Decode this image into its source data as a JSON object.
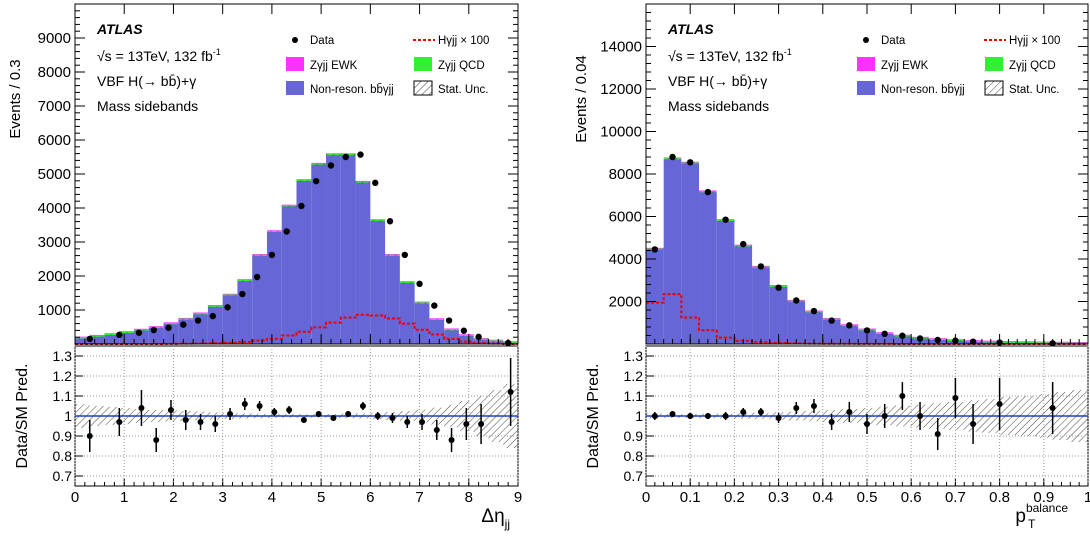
{
  "colors": {
    "nonreson": "#6666d6",
    "zqcd": "#33ee33",
    "zewk": "#ff33ff",
    "higgs": "#ee0000",
    "ratioLine": "#1f3fbf",
    "hatch": "#444444"
  },
  "chart_data": [
    {
      "type": "bar",
      "panel": "left",
      "labels": {
        "atlas": "ATLAS",
        "energy": "√s = 13TeV, 132 fb",
        "energy_sup": "-1",
        "process": "VBF H(→ bb̄)+γ",
        "region": "Mass sidebands"
      },
      "legend": [
        {
          "key": "data",
          "label": "Data"
        },
        {
          "key": "higgs",
          "label": "Hγjj × 100"
        },
        {
          "key": "zewk",
          "label": "Zγjj EWK"
        },
        {
          "key": "zqcd",
          "label": "Zγjj QCD"
        },
        {
          "key": "nonreson",
          "label": "Non-reson. bb̄γjj"
        },
        {
          "key": "stat",
          "label": "Stat. Unc."
        }
      ],
      "legend_placement": "top-right",
      "ylabel": "Events / 0.3",
      "ratio_ylabel": "Data/SM Pred.",
      "xlabel_main": "Δη",
      "xlabel_sub": "jj",
      "xlim": [
        0,
        9
      ],
      "ylim": [
        0,
        10000
      ],
      "yticks": [
        1000,
        2000,
        3000,
        4000,
        5000,
        6000,
        7000,
        8000,
        9000
      ],
      "xticks": [
        0,
        1,
        2,
        3,
        4,
        5,
        6,
        7,
        8,
        9
      ],
      "ratio_ylim": [
        0.65,
        1.35
      ],
      "ratio_yticks": [
        0.7,
        0.8,
        0.9,
        1,
        1.1,
        1.2,
        1.3
      ],
      "ratio_ytick_labels": [
        "0.7",
        "0.8",
        "0.9",
        "1",
        "1.1",
        "1.2",
        "1.3"
      ],
      "bin_edges": [
        0,
        0.3,
        0.6,
        0.9,
        1.2,
        1.5,
        1.8,
        2.1,
        2.4,
        2.7,
        3.0,
        3.3,
        3.6,
        3.9,
        4.2,
        4.5,
        4.8,
        5.1,
        5.4,
        5.7,
        6.0,
        6.3,
        6.6,
        6.9,
        7.2,
        7.5,
        7.8,
        8.1,
        8.4,
        8.7,
        9.0
      ],
      "stack_total": [
        170,
        220,
        270,
        330,
        400,
        480,
        590,
        720,
        880,
        1100,
        1430,
        1860,
        2600,
        3300,
        4050,
        4800,
        5280,
        5560,
        5560,
        4750,
        3620,
        2600,
        1800,
        1200,
        710,
        410,
        240,
        130,
        80,
        30
      ],
      "data_x": [
        0.3,
        0.9,
        1.3,
        1.6,
        1.9,
        2.2,
        2.5,
        2.8,
        3.1,
        3.4,
        3.7,
        4.0,
        4.3,
        4.6,
        4.9,
        5.2,
        5.5,
        5.8,
        6.1,
        6.4,
        6.7,
        7.0,
        7.3,
        7.6,
        7.9,
        8.2,
        8.8
      ],
      "data_y": [
        150,
        270,
        330,
        410,
        480,
        570,
        690,
        820,
        1080,
        1470,
        1970,
        2620,
        3310,
        4060,
        4790,
        5250,
        5500,
        5570,
        4740,
        3610,
        2620,
        1770,
        1130,
        690,
        390,
        210,
        30
      ],
      "higgs_x100": [
        0,
        0,
        0,
        0,
        0,
        0,
        5,
        10,
        15,
        25,
        40,
        60,
        100,
        150,
        250,
        360,
        490,
        630,
        780,
        860,
        840,
        750,
        600,
        420,
        280,
        150,
        70,
        30,
        10,
        0
      ],
      "ratio_x": [
        0.3,
        0.9,
        1.35,
        1.65,
        1.95,
        2.25,
        2.55,
        2.85,
        3.15,
        3.45,
        3.75,
        4.05,
        4.35,
        4.65,
        4.95,
        5.25,
        5.55,
        5.85,
        6.15,
        6.45,
        6.75,
        7.05,
        7.35,
        7.65,
        7.95,
        8.25,
        8.85
      ],
      "ratio_y": [
        0.9,
        0.97,
        1.04,
        0.88,
        1.03,
        0.98,
        0.97,
        0.96,
        1.01,
        1.06,
        1.05,
        1.02,
        1.03,
        0.98,
        1.01,
        0.99,
        1.01,
        1.05,
        1.0,
        0.99,
        0.97,
        0.97,
        0.93,
        0.88,
        0.96,
        0.96,
        1.12
      ],
      "ratio_err": [
        0.08,
        0.07,
        0.09,
        0.06,
        0.05,
        0.05,
        0.04,
        0.04,
        0.03,
        0.03,
        0.025,
        0.02,
        0.02,
        0.015,
        0.015,
        0.015,
        0.015,
        0.02,
        0.02,
        0.025,
        0.03,
        0.04,
        0.05,
        0.06,
        0.08,
        0.1,
        0.17
      ],
      "unc_band": [
        0.06,
        0.05,
        0.045,
        0.04,
        0.035,
        0.03,
        0.028,
        0.025,
        0.022,
        0.018,
        0.015,
        0.013,
        0.011,
        0.01,
        0.009,
        0.009,
        0.009,
        0.01,
        0.011,
        0.013,
        0.016,
        0.02,
        0.025,
        0.032,
        0.042,
        0.056,
        0.075,
        0.1,
        0.13,
        0.16
      ]
    },
    {
      "type": "bar",
      "panel": "right",
      "labels": {
        "atlas": "ATLAS",
        "energy": "√s = 13TeV, 132 fb",
        "energy_sup": "-1",
        "process": "VBF H(→ bb̄)+γ",
        "region": "Mass sidebands"
      },
      "legend": [
        {
          "key": "data",
          "label": "Data"
        },
        {
          "key": "higgs",
          "label": "Hγjj × 100"
        },
        {
          "key": "zewk",
          "label": "Zγjj EWK"
        },
        {
          "key": "zqcd",
          "label": "Zγjj QCD"
        },
        {
          "key": "nonreson",
          "label": "Non-reson. bb̄γjj"
        },
        {
          "key": "stat",
          "label": "Stat. Unc."
        }
      ],
      "legend_placement": "top-right",
      "ylabel": "Events / 0.04",
      "ratio_ylabel": "Data/SM Pred.",
      "xlabel_main": "p",
      "xlabel_sub": "T",
      "xlabel_sup": "balance",
      "xlim": [
        0,
        1
      ],
      "ylim": [
        0,
        16000
      ],
      "yticks": [
        2000,
        4000,
        6000,
        8000,
        10000,
        12000,
        14000
      ],
      "xticks": [
        0,
        0.1,
        0.2,
        0.3,
        0.4,
        0.5,
        0.6,
        0.7,
        0.8,
        0.9,
        1
      ],
      "xtick_labels": [
        "0",
        "0.1",
        "0.2",
        "0.3",
        "0.4",
        "0.5",
        "0.6",
        "0.7",
        "0.8",
        "0.9",
        "1"
      ],
      "ratio_ylim": [
        0.65,
        1.35
      ],
      "ratio_yticks": [
        0.7,
        0.8,
        0.9,
        1,
        1.1,
        1.2,
        1.3
      ],
      "ratio_ytick_labels": [
        "0.7",
        "0.8",
        "0.9",
        "1",
        "1.1",
        "1.2",
        "1.3"
      ],
      "bin_edges": [
        0,
        0.04,
        0.08,
        0.12,
        0.16,
        0.2,
        0.24,
        0.28,
        0.32,
        0.36,
        0.4,
        0.44,
        0.48,
        0.52,
        0.56,
        0.6,
        0.64,
        0.68,
        0.72,
        0.76,
        0.8,
        0.84,
        0.88,
        0.92,
        0.96,
        1.0
      ],
      "stack_total": [
        4450,
        8700,
        8500,
        7150,
        5800,
        4600,
        3600,
        2700,
        2000,
        1500,
        1150,
        850,
        650,
        480,
        360,
        260,
        200,
        150,
        110,
        85,
        65,
        50,
        40,
        30,
        20
      ],
      "data_x": [
        0.02,
        0.06,
        0.1,
        0.14,
        0.18,
        0.22,
        0.26,
        0.3,
        0.34,
        0.38,
        0.42,
        0.46,
        0.5,
        0.54,
        0.58,
        0.62,
        0.66,
        0.7,
        0.74,
        0.8,
        0.92
      ],
      "data_y": [
        4450,
        8800,
        8550,
        7150,
        5850,
        4700,
        3650,
        2650,
        2050,
        1550,
        1100,
        880,
        640,
        480,
        390,
        260,
        190,
        160,
        110,
        70,
        30
      ],
      "higgs_x100": [
        1950,
        2350,
        1250,
        650,
        300,
        150,
        80,
        50,
        30,
        20,
        10,
        10,
        5,
        5,
        0,
        0,
        0,
        0,
        0,
        0,
        0,
        0,
        0,
        0,
        0
      ],
      "ratio_x": [
        0.02,
        0.06,
        0.1,
        0.14,
        0.18,
        0.22,
        0.26,
        0.3,
        0.34,
        0.38,
        0.42,
        0.46,
        0.5,
        0.54,
        0.58,
        0.62,
        0.66,
        0.7,
        0.74,
        0.8,
        0.92
      ],
      "ratio_y": [
        1.0,
        1.01,
        1.0,
        1.0,
        1.0,
        1.02,
        1.02,
        0.99,
        1.04,
        1.05,
        0.97,
        1.02,
        0.96,
        1.0,
        1.1,
        1.0,
        0.91,
        1.09,
        0.96,
        1.06,
        1.04
      ],
      "ratio_err": [
        0.02,
        0.015,
        0.015,
        0.015,
        0.02,
        0.02,
        0.02,
        0.025,
        0.03,
        0.035,
        0.04,
        0.05,
        0.05,
        0.06,
        0.07,
        0.07,
        0.08,
        0.1,
        0.1,
        0.13,
        0.13
      ],
      "unc_band": [
        0.012,
        0.01,
        0.01,
        0.011,
        0.012,
        0.014,
        0.016,
        0.019,
        0.022,
        0.026,
        0.03,
        0.035,
        0.04,
        0.046,
        0.052,
        0.058,
        0.064,
        0.07,
        0.078,
        0.085,
        0.095,
        0.1,
        0.11,
        0.12,
        0.13
      ]
    }
  ]
}
